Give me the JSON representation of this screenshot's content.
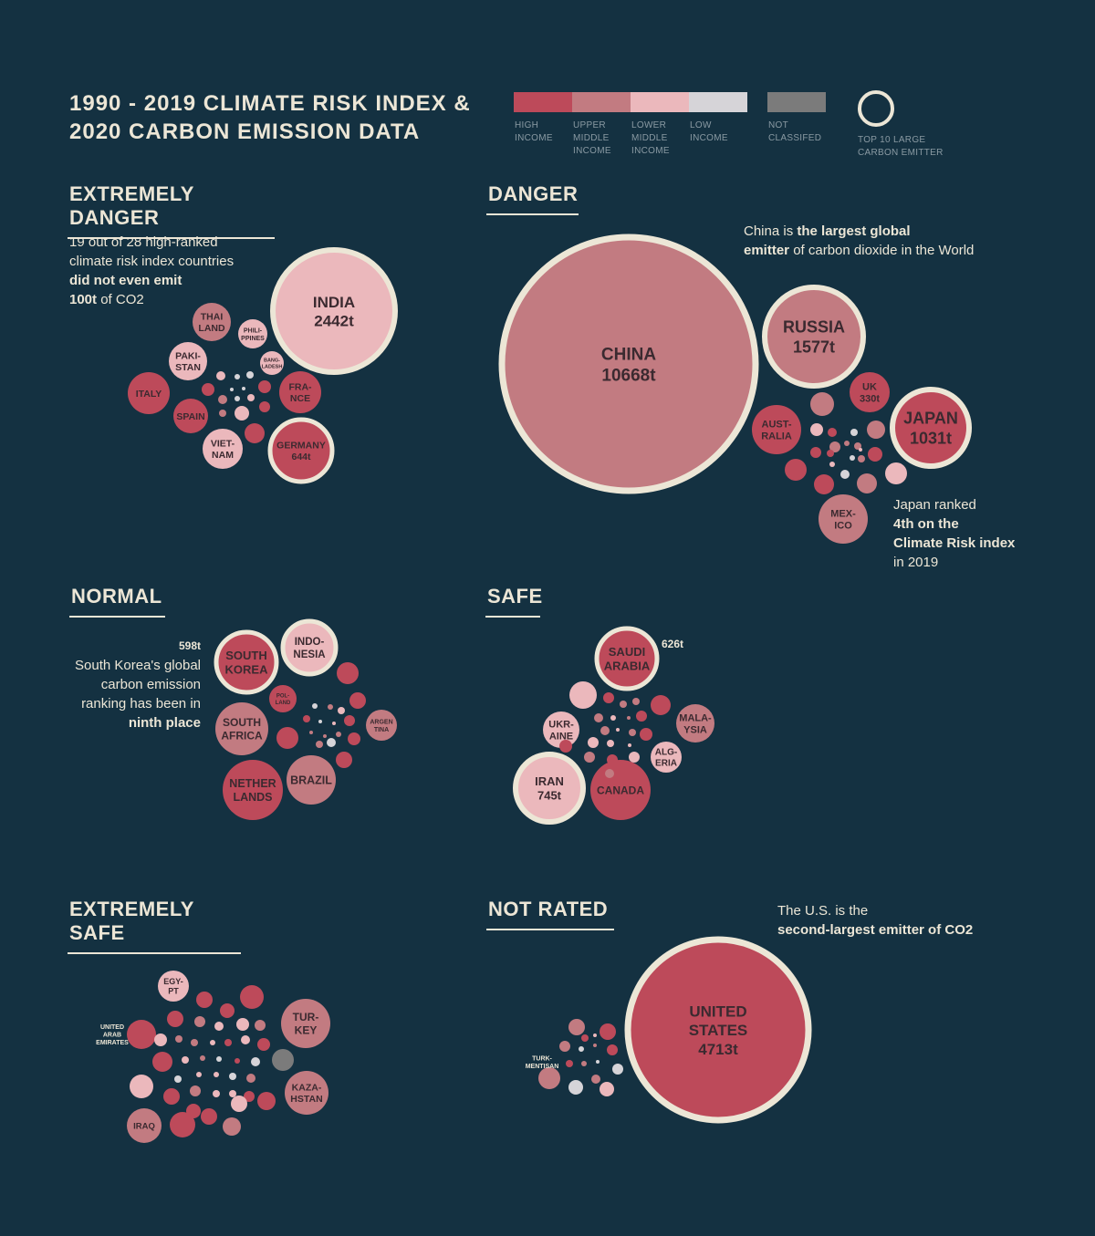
{
  "title": {
    "line1": "1990 - 2019 CLIMATE RISK INDEX &",
    "line2": "2020 CARBON EMISSION DATA"
  },
  "legend": {
    "items": [
      {
        "line1": "HIGH",
        "line2": "INCOME",
        "line3": "",
        "color": "#bd4a5a"
      },
      {
        "line1": "UPPER",
        "line2": "MIDDLE",
        "line3": "INCOME",
        "color": "#c27b81"
      },
      {
        "line1": "LOWER",
        "line2": "MIDDLE",
        "line3": "INCOME",
        "color": "#ebb8bc"
      },
      {
        "line1": "LOW",
        "line2": "INCOME",
        "line3": "",
        "color": "#d6d4d8"
      }
    ],
    "not_classified": {
      "line1": "NOT",
      "line2": "CLASSIFED",
      "color": "#7b7b7b"
    },
    "top_emitter": {
      "line1": "TOP 10 LARGE",
      "line2": "CARBON EMITTER",
      "ring_color": "#ece6d6"
    }
  },
  "sections": {
    "extremely_danger": {
      "title": "EXTREMELY DANGER"
    },
    "danger": {
      "title": "DANGER"
    },
    "normal": {
      "title": "NORMAL"
    },
    "safe": {
      "title": "SAFE"
    },
    "extremely_safe": {
      "title": "EXTREMELY SAFE"
    },
    "not_rated": {
      "title": "NOT RATED"
    }
  },
  "notes": {
    "extremely_danger": {
      "l1": "19 out of 28 high-ranked",
      "l2": "climate risk index countries",
      "l3": "did not even emit",
      "l4a": "100t",
      "l4b": " of CO2"
    },
    "danger_china": {
      "l1a": "China is ",
      "l1b": "the largest global",
      "l2a": "emitter",
      "l2b": " of carbon dioxide in the World"
    },
    "danger_japan": {
      "l1": "Japan ranked",
      "l2": "4th on the",
      "l3": "Climate Risk index",
      "l4": "in 2019"
    },
    "normal_korea": {
      "l1": "598t",
      "l2": "South Korea's global",
      "l3": "carbon emission",
      "l4": "ranking has been in",
      "l5": "ninth place"
    },
    "safe_saudi": {
      "l1": "626t"
    },
    "not_rated_us": {
      "l1": "The U.S. is the",
      "l2": "second-largest emitter of CO2"
    }
  },
  "chart_data": {
    "type": "bubble",
    "title": "1990 - 2019 CLIMATE RISK INDEX & 2020 CARBON EMISSION DATA",
    "colors": {
      "high": "#bd4a5a",
      "upper_middle": "#c27b81",
      "lower_middle": "#ebb8bc",
      "low": "#d6d4d8",
      "nc": "#7b7b7b",
      "ring": "#ece6d6"
    },
    "groups": [
      {
        "name": "EXTREMELY DANGER",
        "bubbles": [
          {
            "label": [
              "INDIA",
              "2442t"
            ],
            "emission": 2442,
            "income": "lower_middle",
            "top10": true
          },
          {
            "label": [
              "GERMANY",
              "644t"
            ],
            "emission": 644,
            "income": "high",
            "top10": true
          },
          {
            "label": [
              "THAI",
              "LAND"
            ],
            "income": "upper_middle"
          },
          {
            "label": [
              "PHILI-",
              "PPINES"
            ],
            "income": "lower_middle"
          },
          {
            "label": [
              "PAKI-",
              "STAN"
            ],
            "income": "lower_middle"
          },
          {
            "label": [
              "BANG-",
              "LADESH"
            ],
            "income": "lower_middle"
          },
          {
            "label": [
              "ITALY"
            ],
            "income": "high"
          },
          {
            "label": [
              "FRA-",
              "NCE"
            ],
            "income": "high"
          },
          {
            "label": [
              "SPAIN"
            ],
            "income": "high"
          },
          {
            "label": [
              "VIET-",
              "NAM"
            ],
            "income": "lower_middle"
          }
        ]
      },
      {
        "name": "DANGER",
        "bubbles": [
          {
            "label": [
              "CHINA",
              "10668t"
            ],
            "emission": 10668,
            "income": "upper_middle",
            "top10": true
          },
          {
            "label": [
              "RUSSIA",
              "1577t"
            ],
            "emission": 1577,
            "income": "upper_middle",
            "top10": true
          },
          {
            "label": [
              "JAPAN",
              "1031t"
            ],
            "emission": 1031,
            "income": "high",
            "top10": true
          },
          {
            "label": [
              "UK",
              "330t"
            ],
            "emission": 330,
            "income": "high"
          },
          {
            "label": [
              "AUST-",
              "RALIA"
            ],
            "income": "high"
          },
          {
            "label": [
              "MEX-",
              "ICO"
            ],
            "income": "upper_middle"
          }
        ]
      },
      {
        "name": "NORMAL",
        "bubbles": [
          {
            "label": [
              "SOUTH",
              "KOREA"
            ],
            "emission": 598,
            "income": "high",
            "top10": true
          },
          {
            "label": [
              "INDO-",
              "NESIA"
            ],
            "income": "lower_middle",
            "top10": true
          },
          {
            "label": [
              "SOUTH",
              "AFRICA"
            ],
            "income": "upper_middle"
          },
          {
            "label": [
              "BRAZIL"
            ],
            "income": "upper_middle"
          },
          {
            "label": [
              "POL-",
              "LAND"
            ],
            "income": "high"
          },
          {
            "label": [
              "NETHER",
              "LANDS"
            ],
            "income": "high"
          },
          {
            "label": [
              "ARGEN",
              "TINA"
            ],
            "income": "upper_middle"
          }
        ]
      },
      {
        "name": "SAFE",
        "bubbles": [
          {
            "label": [
              "SAUDI",
              "ARABIA"
            ],
            "emission": 626,
            "income": "high",
            "top10": true
          },
          {
            "label": [
              "IRAN",
              "745t"
            ],
            "emission": 745,
            "income": "lower_middle",
            "top10": true
          },
          {
            "label": [
              "CANADA"
            ],
            "income": "high"
          },
          {
            "label": [
              "UKR-",
              "AINE"
            ],
            "income": "lower_middle"
          },
          {
            "label": [
              "MALA-",
              "YSIA"
            ],
            "income": "upper_middle"
          },
          {
            "label": [
              "ALG-",
              "ERIA"
            ],
            "income": "lower_middle"
          }
        ]
      },
      {
        "name": "EXTREMELY SAFE",
        "bubbles": [
          {
            "label": [
              "EGY-",
              "PT"
            ],
            "income": "lower_middle"
          },
          {
            "label": [
              "TUR-",
              "KEY"
            ],
            "income": "upper_middle"
          },
          {
            "label": [
              "KAZA-",
              "HSTAN"
            ],
            "income": "upper_middle"
          },
          {
            "label": [
              "IRAQ"
            ],
            "income": "upper_middle"
          },
          {
            "label": [
              "UNITED",
              "ARAB",
              "EMIRATES"
            ],
            "income": "high"
          }
        ]
      },
      {
        "name": "NOT RATED",
        "bubbles": [
          {
            "label": [
              "UNITED",
              "STATES",
              "4713t"
            ],
            "emission": 4713,
            "income": "high",
            "top10": true
          },
          {
            "label": [
              "TURK-",
              "MENTISAN"
            ],
            "income": "upper_middle"
          }
        ]
      }
    ]
  }
}
